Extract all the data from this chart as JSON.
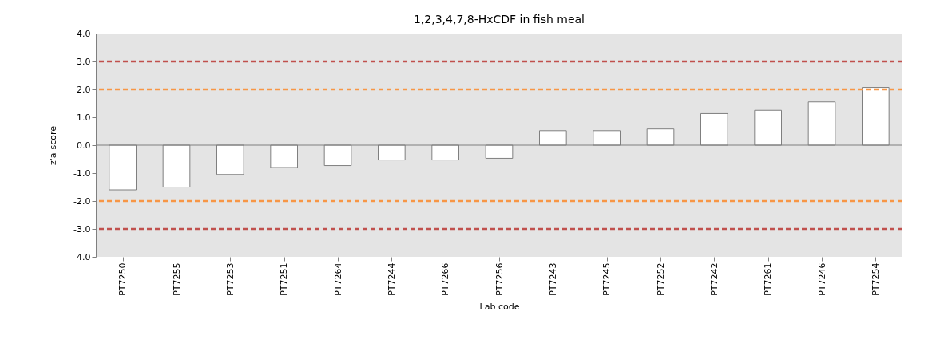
{
  "chart_data": {
    "type": "bar",
    "title": "1,2,3,4,7,8-HxCDF in fish meal",
    "xlabel": "Lab code",
    "ylabel": "z'a-score",
    "categories": [
      "PT7250",
      "PT7255",
      "PT7253",
      "PT7251",
      "PT7264",
      "PT7244",
      "PT7266",
      "PT7256",
      "PT7243",
      "PT7245",
      "PT7252",
      "PT7242",
      "PT7261",
      "PT7246",
      "PT7254"
    ],
    "values": [
      -1.6,
      -1.5,
      -1.05,
      -0.8,
      -0.73,
      -0.53,
      -0.53,
      -0.47,
      0.52,
      0.52,
      0.58,
      1.13,
      1.25,
      1.55,
      2.07
    ],
    "color": "#ffffff",
    "ylim": [
      -4,
      4
    ],
    "yticks": [
      {
        "value": -4,
        "label": "-4.0"
      },
      {
        "value": -3,
        "label": "-3.0"
      },
      {
        "value": -2,
        "label": "-2.0"
      },
      {
        "value": -1,
        "label": "-1.0"
      },
      {
        "value": 0,
        "label": "0.0"
      },
      {
        "value": 1,
        "label": "1.0"
      },
      {
        "value": 2,
        "label": "2.0"
      },
      {
        "value": 3,
        "label": "3.0"
      },
      {
        "value": 4,
        "label": "4.0"
      }
    ],
    "ref_lines": [
      {
        "axis": "y",
        "value": 3,
        "color": "#c0504d",
        "line_style": "dashed"
      },
      {
        "axis": "y",
        "value": 2,
        "color": "#f79646",
        "line_style": "dashed"
      },
      {
        "axis": "y",
        "value": -2,
        "color": "#f79646",
        "line_style": "dashed"
      },
      {
        "axis": "y",
        "value": -3,
        "color": "#c0504d",
        "line_style": "dashed"
      }
    ],
    "grid": false
  }
}
